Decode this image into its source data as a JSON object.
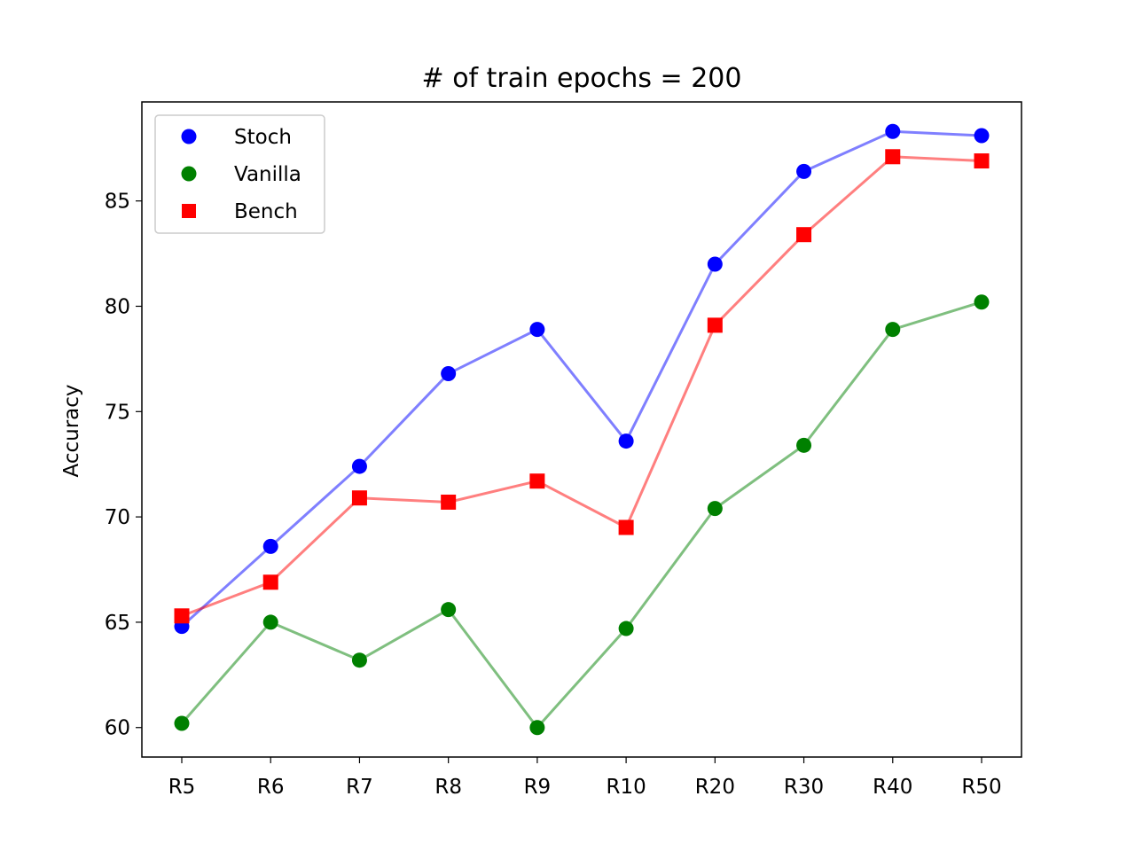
{
  "chart_data": {
    "type": "line",
    "title": "# of train epochs = 200",
    "xlabel": "",
    "ylabel": "Accuracy",
    "categories": [
      "R5",
      "R6",
      "R7",
      "R8",
      "R9",
      "R10",
      "R20",
      "R30",
      "R40",
      "R50"
    ],
    "ylim": [
      58.6,
      89.7
    ],
    "yticks": [
      60,
      65,
      70,
      75,
      80,
      85
    ],
    "grid": false,
    "legend_position": "top-left",
    "series": [
      {
        "name": "Stoch",
        "color": "#0000ff",
        "marker": "circle",
        "values": [
          64.8,
          68.6,
          72.4,
          76.8,
          78.9,
          73.6,
          82.0,
          86.4,
          88.3,
          88.1
        ]
      },
      {
        "name": "Vanilla",
        "color": "#008000",
        "marker": "circle",
        "values": [
          60.2,
          65.0,
          63.2,
          65.6,
          60.0,
          64.7,
          70.4,
          73.4,
          78.9,
          80.2
        ]
      },
      {
        "name": "Bench",
        "color": "#ff0000",
        "marker": "square",
        "values": [
          65.3,
          66.9,
          70.9,
          70.7,
          71.7,
          69.5,
          79.1,
          83.4,
          87.1,
          86.9
        ]
      }
    ]
  }
}
